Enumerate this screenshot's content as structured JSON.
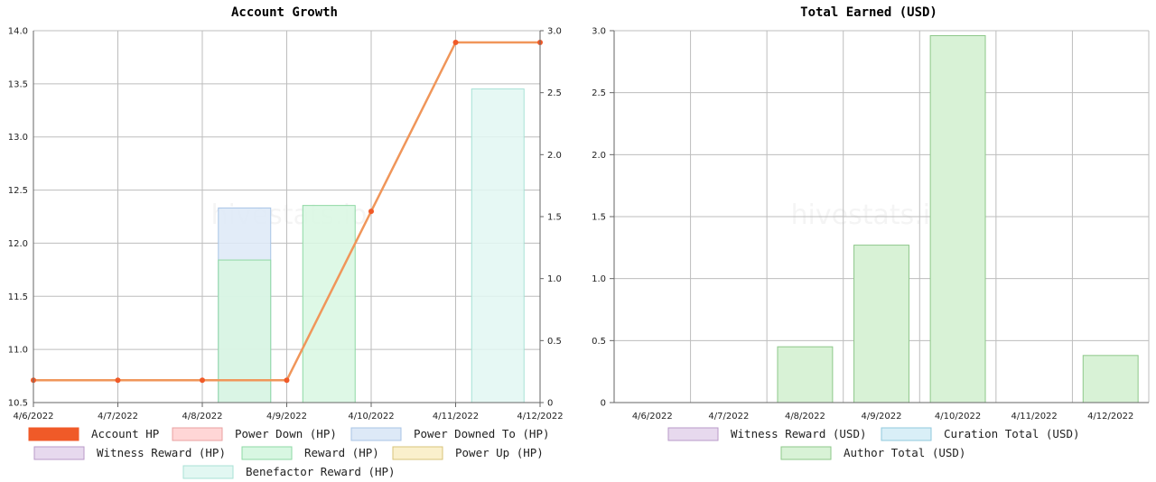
{
  "watermark": "hivestats.io",
  "chart_data": [
    {
      "type": "bar",
      "title": "Account Growth",
      "categories": [
        "4/6/2022",
        "4/7/2022",
        "4/8/2022",
        "4/9/2022",
        "4/10/2022",
        "4/11/2022",
        "4/12/2022"
      ],
      "left_axis": {
        "ylim": [
          10.5,
          14.0
        ],
        "ticks": [
          "10.5",
          "11.0",
          "11.5",
          "12.0",
          "12.5",
          "13.0",
          "13.5",
          "14.0"
        ]
      },
      "right_axis": {
        "ylim": [
          0,
          3.0
        ],
        "ticks": [
          "0",
          "0.5",
          "1.0",
          "1.5",
          "2.0",
          "2.5",
          "3.0"
        ]
      },
      "grid": true,
      "legend_position": "bottom",
      "series": [
        {
          "name": "Account HP",
          "type": "line",
          "axis": "left",
          "color": "#f05a28",
          "line_color": "#f0965a",
          "values": [
            10.71,
            10.71,
            10.71,
            10.71,
            12.3,
            13.89,
            13.89
          ]
        },
        {
          "name": "Power Down (HP)",
          "type": "bar",
          "axis": "right",
          "color": "#ffd6d6",
          "border": "#e8a0a0",
          "values": [
            0,
            0,
            0,
            0,
            0,
            0,
            0
          ]
        },
        {
          "name": "Power Downed To (HP)",
          "type": "bar",
          "axis": "right",
          "color": "#dde9f7",
          "border": "#a8c4e6",
          "values": [
            0,
            0,
            0,
            1.57,
            0,
            0,
            0
          ]
        },
        {
          "name": "Witness Reward (HP)",
          "type": "bar",
          "axis": "right",
          "color": "#e7d9ee",
          "border": "#b89ac8",
          "values": [
            0,
            0,
            0,
            0,
            0,
            0,
            0
          ]
        },
        {
          "name": "Reward (HP)",
          "type": "bar",
          "axis": "right",
          "color": "#d8f7e2",
          "border": "#8ed8a4",
          "values": [
            0,
            0,
            0,
            1.15,
            1.59,
            0,
            0
          ]
        },
        {
          "name": "Power Up (HP)",
          "type": "bar",
          "axis": "right",
          "color": "#faf0cc",
          "border": "#d8c37a",
          "values": [
            0,
            0,
            0,
            0,
            0,
            0,
            0
          ]
        },
        {
          "name": "Benefactor Reward (HP)",
          "type": "bar",
          "axis": "right",
          "color": "#e2f7f2",
          "border": "#a8e2d6",
          "values": [
            0,
            0,
            0,
            0,
            0,
            0,
            2.53
          ]
        }
      ]
    },
    {
      "type": "bar",
      "title": "Total Earned (USD)",
      "categories": [
        "4/6/2022",
        "4/7/2022",
        "4/8/2022",
        "4/9/2022",
        "4/10/2022",
        "4/11/2022",
        "4/12/2022"
      ],
      "ylim": [
        0,
        3.0
      ],
      "ticks": [
        "0",
        "0.5",
        "1.0",
        "1.5",
        "2.0",
        "2.5",
        "3.0"
      ],
      "grid": true,
      "legend_position": "bottom",
      "series": [
        {
          "name": "Witness Reward (USD)",
          "color": "#e7d9ee",
          "border": "#b89ac8",
          "values": [
            0,
            0,
            0,
            0,
            0,
            0,
            0
          ]
        },
        {
          "name": "Curation Total (USD)",
          "color": "#d9eff7",
          "border": "#90c8de",
          "values": [
            0,
            0,
            0,
            0,
            0,
            0,
            0
          ]
        },
        {
          "name": "Author Total (USD)",
          "color": "#d8f2d6",
          "border": "#8ec88a",
          "values": [
            0,
            0,
            0.45,
            1.27,
            2.96,
            0,
            0.38
          ]
        }
      ]
    }
  ]
}
